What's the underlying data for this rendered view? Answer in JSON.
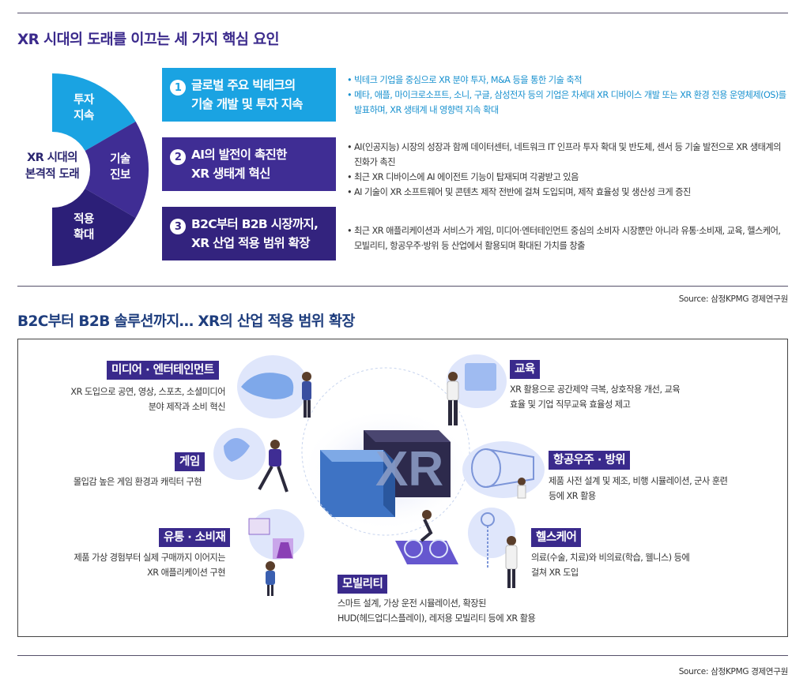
{
  "section1": {
    "title": "XR 시대의 도래를 이끄는 세 가지 핵심 요인",
    "center_label": [
      "XR 시대의",
      "본격적 도래"
    ],
    "segments": [
      {
        "label": [
          "투자",
          "지속"
        ],
        "color": "#1aa3e2"
      },
      {
        "label": [
          "기술",
          "진보"
        ],
        "color": "#3f2d94"
      },
      {
        "label": [
          "적용",
          "확대"
        ],
        "color": "#2c1f78"
      }
    ],
    "factors": [
      {
        "num": "1",
        "line1": "글로벌 주요 빅테크의",
        "line2": "기술 개발 및 투자 지속",
        "color": "#1aa3e2",
        "bullets": [
          "빅테크 기업을 중심으로 XR 분야 투자, M&A 등을 통한 기술 축적",
          "메타, 애플, 마이크로소프트, 소니, 구글, 삼성전자 등의 기업은 차세대 XR 디바이스 개발 또는 XR 환경 전용 운영체제(OS)를 발표하며, XR 생태계 내 영향력 지속 확대"
        ]
      },
      {
        "num": "2",
        "line1": "AI의 발전이 촉진한",
        "line2": "XR 생태계 혁신",
        "color": "#3f2d94",
        "bullets": [
          "AI(인공지능) 시장의 성장과 함께 데이터센터, 네트워크 IT 인프라 투자 확대 및 반도체, 센서 등 기술 발전으로 XR 생태계의 진화가 촉진",
          "최근 XR 디바이스에 AI 에이전트 기능이 탑재되며 각광받고 있음",
          "AI 기술이 XR 소프트웨어 및 콘텐츠 제작 전반에 걸쳐 도입되며, 제작 효율성 및 생산성 크게 증진"
        ]
      },
      {
        "num": "3",
        "line1": "B2C부터 B2B 시장까지,",
        "line2": "XR 산업 적용 범위 확장",
        "color": "#33237e",
        "bullets": [
          "최근 XR 애플리케이션과 서비스가 게임, 미디어·엔터테인먼트 중심의 소비자 시장뿐만 아니라 유통·소비재, 교육, 헬스케어, 모빌리티, 항공우주·방위 등 산업에서 활용되며 확대된 가치를 창출"
        ]
      }
    ],
    "source": "Source: 삼정KPMG 경제연구원"
  },
  "section2": {
    "title": "B2C부터 B2B 솔루션까지… XR의 산업 적용 범위 확장",
    "center": "XR",
    "industries": {
      "media": {
        "tag": "미디어 · 엔터테인먼트",
        "desc": [
          "XR 도입으로 공연, 영상, 스포츠, 소셜미디어",
          "분야 제작과 소비 혁신"
        ]
      },
      "game": {
        "tag": "게임",
        "desc": [
          "몰입감 높은 게임 환경과 캐릭터 구현"
        ]
      },
      "retail": {
        "tag": "유통 · 소비재",
        "desc": [
          "제품 가상 경험부터 실제 구매까지 이어지는",
          "XR 애플리케이션 구현"
        ]
      },
      "mobility": {
        "tag": "모빌리티",
        "desc": [
          "스마트 설계, 가상 운전 시뮬레이션, 확장된",
          "HUD(헤드업디스플레이), 레저용 모빌리티 등에 XR 활용"
        ]
      },
      "education": {
        "tag": "교육",
        "desc": [
          "XR 활용으로 공간제약 극복, 상호작용 개선, 교육",
          "효율 및 기업 직무교육 효율성 제고"
        ]
      },
      "aerospace": {
        "tag": "항공우주 · 방위",
        "desc": [
          "제품 사전 설계 및 제조, 비행 시뮬레이션, 군사 훈련",
          "등에 XR 활용"
        ]
      },
      "health": {
        "tag": "헬스케어",
        "desc": [
          "의료(수술, 치료)와 비의료(학습, 웰니스) 등에",
          "걸쳐 XR 도입"
        ]
      }
    },
    "source": "Source: 삼정KPMG 경제연구원"
  }
}
